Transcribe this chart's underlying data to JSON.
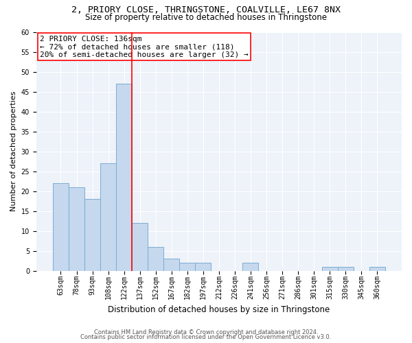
{
  "title1": "2, PRIORY CLOSE, THRINGSTONE, COALVILLE, LE67 8NX",
  "title2": "Size of property relative to detached houses in Thringstone",
  "xlabel": "Distribution of detached houses by size in Thringstone",
  "ylabel": "Number of detached properties",
  "footer1": "Contains HM Land Registry data © Crown copyright and database right 2024.",
  "footer2": "Contains public sector information licensed under the Open Government Licence v3.0.",
  "bins": [
    "63sqm",
    "78sqm",
    "93sqm",
    "108sqm",
    "122sqm",
    "137sqm",
    "152sqm",
    "167sqm",
    "182sqm",
    "197sqm",
    "212sqm",
    "226sqm",
    "241sqm",
    "256sqm",
    "271sqm",
    "286sqm",
    "301sqm",
    "315sqm",
    "330sqm",
    "345sqm",
    "360sqm"
  ],
  "values": [
    22,
    21,
    18,
    27,
    47,
    12,
    6,
    3,
    2,
    2,
    0,
    0,
    2,
    0,
    0,
    0,
    0,
    1,
    1,
    0,
    1
  ],
  "bar_color": "#c5d8ed",
  "bar_edge_color": "#7aadd4",
  "vline_x": 4.5,
  "annotation_text": "2 PRIORY CLOSE: 136sqm\n← 72% of detached houses are smaller (118)\n20% of semi-detached houses are larger (32) →",
  "annotation_box_color": "white",
  "annotation_box_edge_color": "red",
  "vline_color": "red",
  "ylim": [
    0,
    60
  ],
  "yticks": [
    0,
    5,
    10,
    15,
    20,
    25,
    30,
    35,
    40,
    45,
    50,
    55,
    60
  ],
  "bg_color": "#eef2f9",
  "grid_color": "white",
  "title1_fontsize": 9.5,
  "title2_fontsize": 8.5,
  "xlabel_fontsize": 8.5,
  "ylabel_fontsize": 8,
  "tick_fontsize": 7,
  "annotation_fontsize": 8,
  "footer_fontsize": 6
}
